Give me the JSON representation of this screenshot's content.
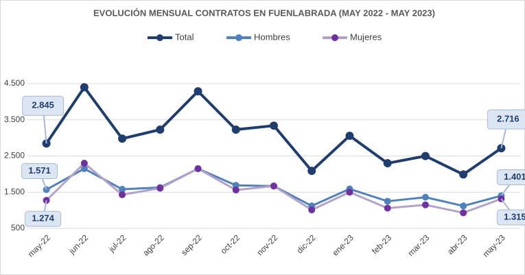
{
  "chart_data": {
    "type": "line",
    "title": "EVOLUCIÓN MENSUAL CONTRATOS EN FUENLABRADA (MAY 2022 - MAY 2023)",
    "categories": [
      "may-22",
      "jun-22",
      "jul-22",
      "ago-22",
      "sep-22",
      "oct-22",
      "nov-22",
      "dic-22",
      "ene-23",
      "feb-23",
      "mar-23",
      "abr-23",
      "may-23"
    ],
    "series": [
      {
        "name": "Total",
        "color": "#1f3d6e",
        "marker_color": "#1f3d6e",
        "values": [
          2845,
          4400,
          2980,
          3230,
          4290,
          3230,
          3340,
          2090,
          3060,
          2300,
          2500,
          1990,
          2716
        ],
        "value_labels": [
          "2.845",
          null,
          null,
          null,
          null,
          null,
          null,
          null,
          null,
          null,
          null,
          null,
          "2.716"
        ]
      },
      {
        "name": "Hombres",
        "color": "#4f81bd",
        "marker_color": "#4f81bd",
        "values": [
          1571,
          2150,
          1580,
          1630,
          2150,
          1690,
          1670,
          1120,
          1590,
          1250,
          1360,
          1120,
          1401
        ],
        "value_labels": [
          "1.571",
          null,
          null,
          null,
          null,
          null,
          null,
          null,
          null,
          null,
          null,
          null,
          "1.401"
        ]
      },
      {
        "name": "Mujeres",
        "color": "#b3a2c7",
        "marker_color": "#7030a0",
        "values": [
          1274,
          2300,
          1430,
          1610,
          2150,
          1560,
          1670,
          1010,
          1500,
          1060,
          1150,
          930,
          1315
        ],
        "value_labels": [
          "1.274",
          null,
          null,
          null,
          null,
          null,
          null,
          null,
          null,
          null,
          null,
          null,
          "1.315"
        ]
      }
    ],
    "ylim": [
      500,
      4500
    ],
    "yticks": [
      500,
      {
        "value": 1500,
        "label": "1.500"
      },
      {
        "value": 2500,
        "label": "2.500"
      },
      {
        "value": 3500,
        "label": "3.500"
      },
      {
        "value": 4500,
        "label": "4.500"
      }
    ],
    "grid": true,
    "legend": "top"
  }
}
